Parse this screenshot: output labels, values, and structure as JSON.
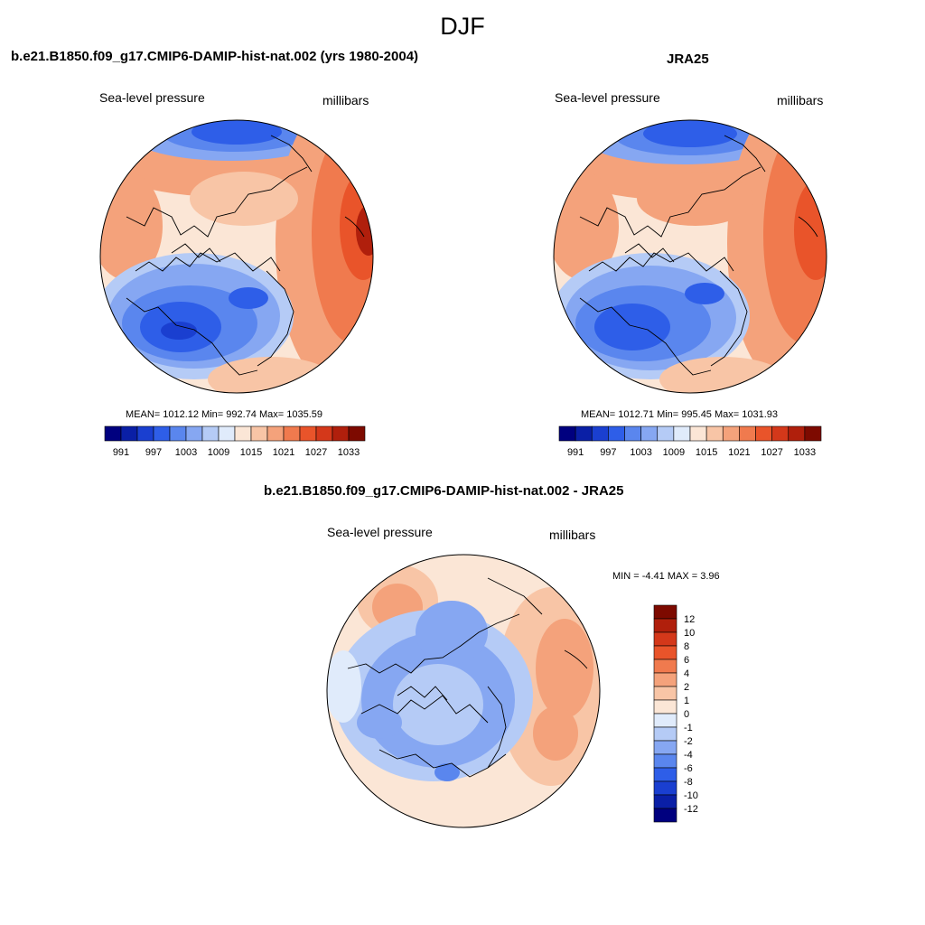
{
  "figure": {
    "title": "DJF"
  },
  "panels": [
    {
      "title": "b.e21.B1850.f09_g17.CMIP6-DAMIP-hist-nat.002 (yrs 1980-2004)",
      "left_label": "Sea-level pressure",
      "right_label": "millibars",
      "stats": "MEAN= 1012.12  Min= 992.74  Max= 1035.59"
    },
    {
      "title": "JRA25",
      "left_label": "Sea-level pressure",
      "right_label": "millibars",
      "stats": "MEAN= 1012.71  Min= 995.45  Max= 1031.93"
    },
    {
      "title": "b.e21.B1850.f09_g17.CMIP6-DAMIP-hist-nat.002 - JRA25",
      "left_label": "Sea-level pressure",
      "right_label": "millibars",
      "stats": "MIN =  -4.41 MAX =   3.96"
    }
  ],
  "colorbar_abs": {
    "colors": [
      "#00007f",
      "#0a1fa6",
      "#1a3fd0",
      "#2e5ee8",
      "#5a86ee",
      "#86a7f2",
      "#b5cbf6",
      "#e0ebfb",
      "#fbe6d6",
      "#f8c5a6",
      "#f4a27b",
      "#f07a4e",
      "#e9542a",
      "#d4381a",
      "#b01f0c",
      "#7d0a00"
    ],
    "ticks": [
      "991",
      "997",
      "1003",
      "1009",
      "1015",
      "1021",
      "1027",
      "1033"
    ]
  },
  "colorbar_diff": {
    "colors": [
      "#7d0a00",
      "#b01f0c",
      "#d4381a",
      "#e9542a",
      "#f07a4e",
      "#f4a27b",
      "#f8c5a6",
      "#fbe6d6",
      "#e0ebfb",
      "#b5cbf6",
      "#86a7f2",
      "#5a86ee",
      "#2e5ee8",
      "#1a3fd0",
      "#0a1fa6",
      "#00007f"
    ],
    "ticks": [
      "12",
      "10",
      "8",
      "6",
      "4",
      "2",
      "1",
      "0",
      "-1",
      "-2",
      "-4",
      "-6",
      "-8",
      "-10",
      "-12"
    ]
  }
}
